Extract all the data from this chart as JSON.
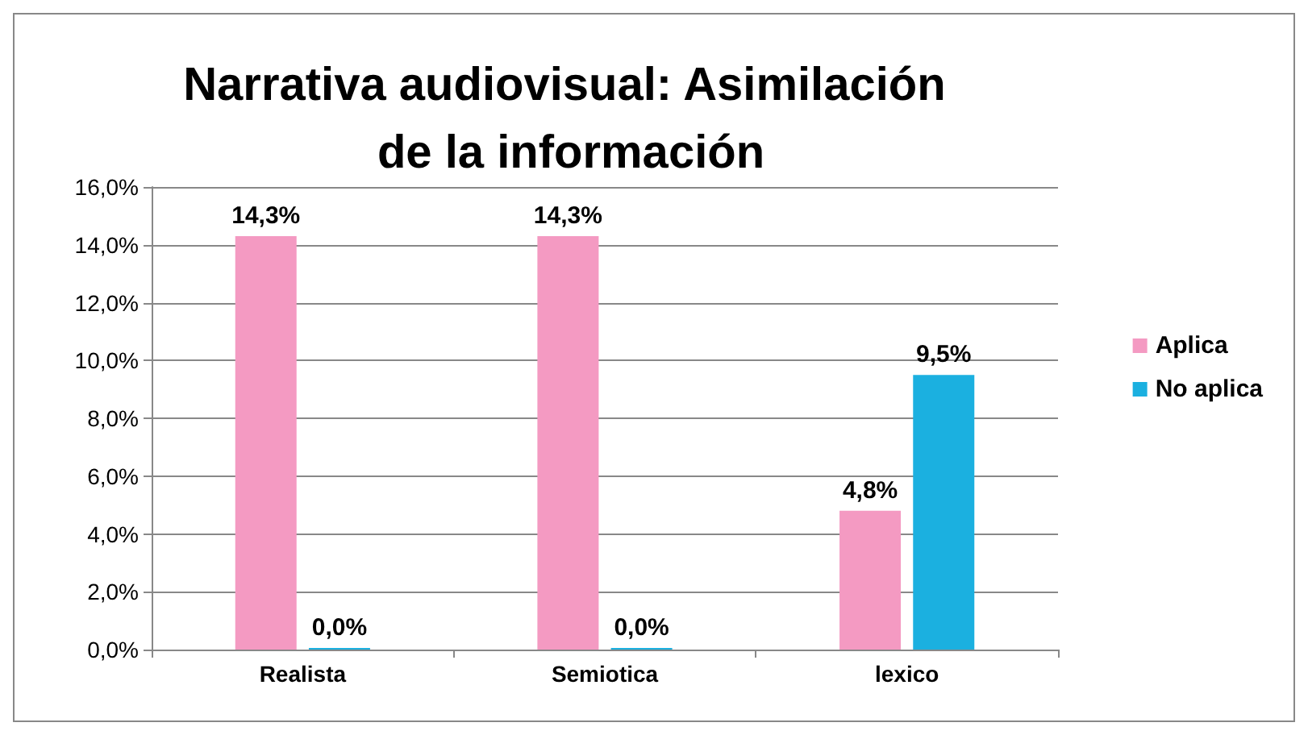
{
  "chart_data": {
    "type": "bar",
    "title": "Narrativa audiovisual: Asimilación de la información",
    "categories": [
      "Realista",
      "Semiotica",
      "lexico"
    ],
    "series": [
      {
        "name": "Aplica",
        "color": "#f49ac2",
        "values": [
          14.3,
          14.3,
          4.8
        ],
        "value_labels": [
          "14,3%",
          "14,3%",
          "4,8%"
        ]
      },
      {
        "name": "No aplica",
        "color": "#1bb0e0",
        "values": [
          0,
          0,
          9.5
        ],
        "value_labels": [
          "0,0%",
          "0,0%",
          "9,5%"
        ]
      }
    ],
    "ylim": [
      0,
      16
    ],
    "yticks": [
      {
        "value": 0,
        "label": "0,0%"
      },
      {
        "value": 2,
        "label": "2,0%"
      },
      {
        "value": 4,
        "label": "4,0%"
      },
      {
        "value": 6,
        "label": "6,0%"
      },
      {
        "value": 8,
        "label": "8,0%"
      },
      {
        "value": 10,
        "label": "10,0%"
      },
      {
        "value": 12,
        "label": "12,0%"
      },
      {
        "value": 14,
        "label": "14,0%"
      },
      {
        "value": 16,
        "label": "16,0%"
      }
    ],
    "grid": "y",
    "legend": "right"
  }
}
